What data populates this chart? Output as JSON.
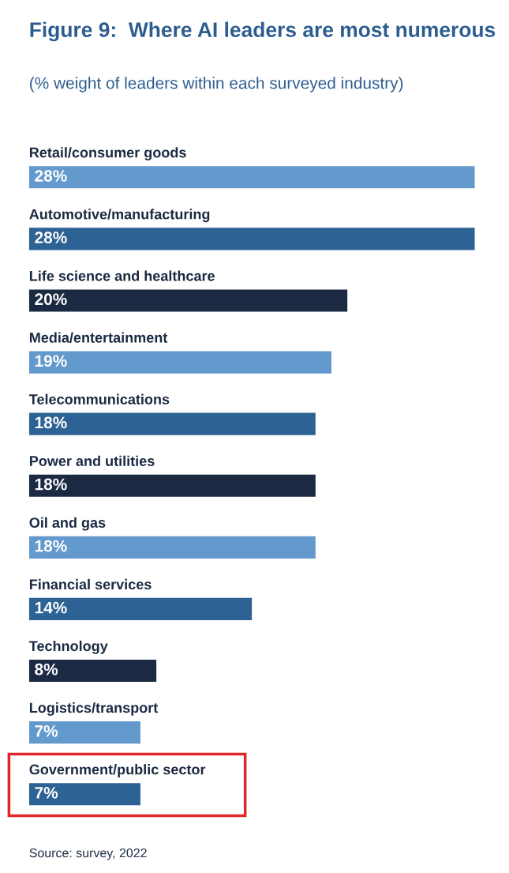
{
  "chart_data": {
    "type": "bar",
    "orientation": "horizontal",
    "title": "Figure 9:  Where AI leaders are most numerous",
    "subtitle": "(% weight of leaders within each surveyed industry)",
    "categories": [
      "Retail/consumer goods",
      "Automotive/manufacturing",
      "Life science and healthcare",
      "Media/entertainment",
      "Telecommunications",
      "Power and utilities",
      "Oil and gas",
      "Financial services",
      "Technology",
      "Logistics/transport",
      "Government/public sector"
    ],
    "values": [
      28,
      28,
      20,
      19,
      18,
      18,
      18,
      14,
      8,
      7,
      7
    ],
    "value_labels": [
      "28%",
      "28%",
      "20%",
      "19%",
      "18%",
      "18%",
      "18%",
      "14%",
      "8%",
      "7%",
      "7%"
    ],
    "colors": [
      "#6399cd",
      "#2d6295",
      "#1b2a42",
      "#6399cd",
      "#2d6295",
      "#1b2a42",
      "#6399cd",
      "#2d6295",
      "#1b2a42",
      "#6399cd",
      "#2d6295"
    ],
    "annotations": [
      "Source: survey, 2022"
    ]
  }
}
